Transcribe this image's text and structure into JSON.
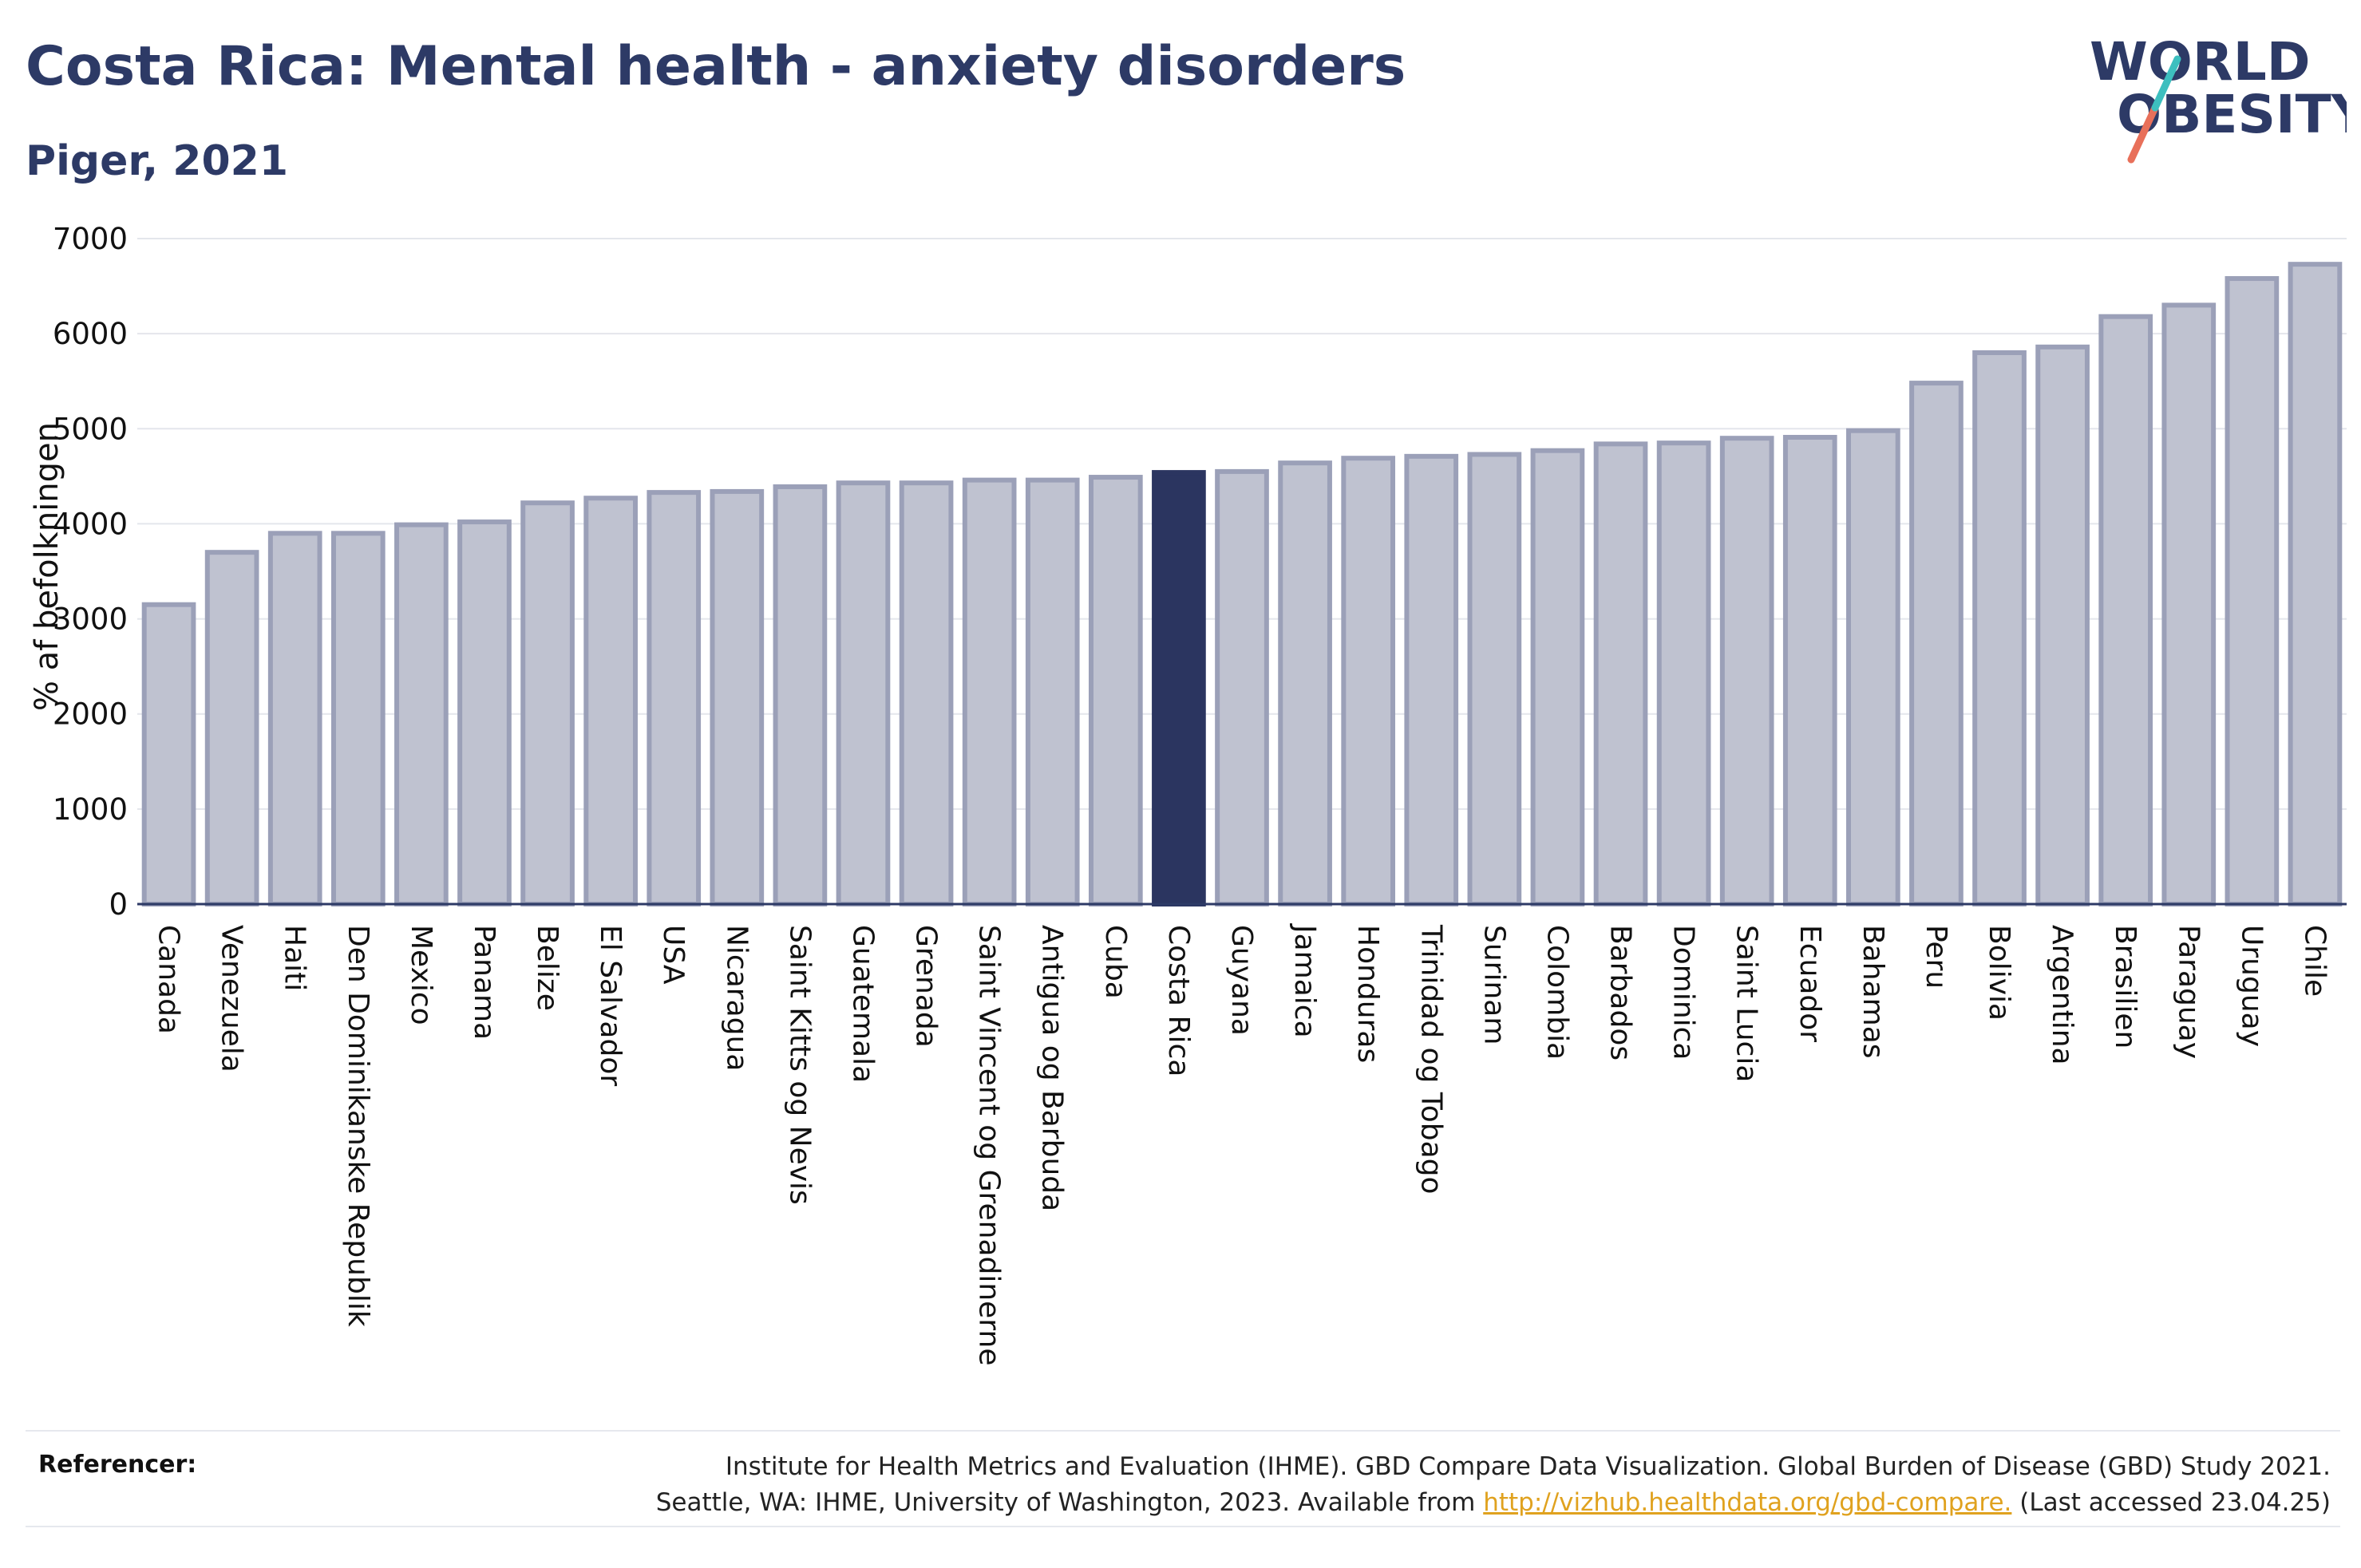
{
  "header": {
    "title": "Costa Rica: Mental health - anxiety disorders",
    "subtitle": "Piger, 2021"
  },
  "logo": {
    "line1": "WORLD",
    "line2": "OBESITY"
  },
  "colors": {
    "highlight_bar": "#2b3560",
    "other_bar_fill": "#bfc2d0",
    "other_bar_stroke": "#9ba0b8",
    "title": "#2d3a66",
    "link": "#e0a21f",
    "logo_slash_teal": "#3dbfbf",
    "logo_slash_coral": "#e8705a"
  },
  "chart_data": {
    "type": "bar",
    "ylabel": "% af befolkningen",
    "xlabel": "",
    "ylim": [
      0,
      7000
    ],
    "yticks": [
      0,
      1000,
      2000,
      3000,
      4000,
      5000,
      6000,
      7000
    ],
    "grid": true,
    "highlight": "Costa Rica",
    "categories": [
      "Canada",
      "Venezuela",
      "Haiti",
      "Den Dominikanske Republik",
      "Mexico",
      "Panama",
      "Belize",
      "El Salvador",
      "USA",
      "Nicaragua",
      "Saint Kitts og Nevis",
      "Guatemala",
      "Grenada",
      "Saint Vincent og Grenadinerne",
      "Antigua og Barbuda",
      "Cuba",
      "Costa Rica",
      "Guyana",
      "Jamaica",
      "Honduras",
      "Trinidad og Tobago",
      "Surinam",
      "Colombia",
      "Barbados",
      "Dominica",
      "Saint Lucia",
      "Ecuador",
      "Bahamas",
      "Peru",
      "Bolivia",
      "Argentina",
      "Brasilien",
      "Paraguay",
      "Uruguay",
      "Chile"
    ],
    "values": [
      3150,
      3700,
      3900,
      3900,
      3990,
      4020,
      4220,
      4270,
      4330,
      4340,
      4390,
      4430,
      4430,
      4460,
      4460,
      4490,
      4540,
      4550,
      4640,
      4690,
      4710,
      4730,
      4770,
      4840,
      4850,
      4900,
      4910,
      4980,
      5480,
      5800,
      5860,
      6180,
      6300,
      6580,
      6730
    ]
  },
  "footer": {
    "label": "Referencer:",
    "line1": "Institute for Health Metrics and Evaluation (IHME). GBD Compare Data Visualization. Global Burden of Disease (GBD) Study 2021.",
    "line2_prefix": "Seattle, WA: IHME, University of Washington, 2023. Available from ",
    "link": "http://vizhub.healthdata.org/gbd-compare.",
    "line2_suffix": " (Last accessed 23.04.25)"
  }
}
